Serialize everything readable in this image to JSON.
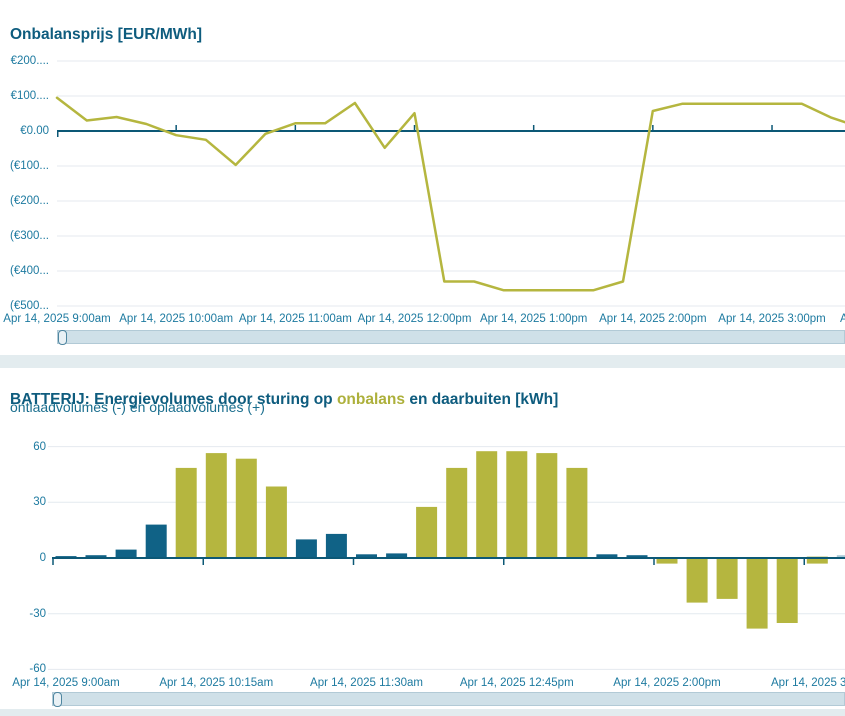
{
  "colors": {
    "title_teal": "#0e5c7e",
    "axis_text_teal": "#1d7aa0",
    "olive": "#b5b63f",
    "teal_bar": "#106286",
    "zero_axis": "#0c5876",
    "grid": "#e4eaef",
    "scroll_track": "#cfe0e8",
    "scroll_border": "#b2cad6",
    "scroll_thumb_border": "#4f86a0",
    "divider_band": "#e3ecef",
    "pale_olive": "#d9ddb2",
    "pale_teal": "#abcbd8"
  },
  "price_chart": {
    "title": "Onbalansprijs [EUR/MWh]"
  },
  "battery_chart": {
    "title_part1": "BATTERIJ: Energievolumes door sturing op ",
    "title_highlight": "onbalans",
    "title_part2": " en daarbuiten [kWh]",
    "subtitle": "ontlaadvolumes (-) en oplaadvolumes (+)"
  },
  "chart_data": [
    {
      "id": "onbalansprijs",
      "type": "line",
      "title": "Onbalansprijs [EUR/MWh]",
      "unit": "EUR/MWh",
      "line_color": "#b5b63f",
      "x_interval_minutes": 15,
      "x": [
        "9:00am",
        "9:15am",
        "9:30am",
        "9:45am",
        "10:00am",
        "10:15am",
        "10:30am",
        "10:45am",
        "11:00am",
        "11:15am",
        "11:30am",
        "11:45am",
        "12:00pm",
        "12:15pm",
        "12:30pm",
        "12:45pm",
        "1:00pm",
        "1:15pm",
        "1:30pm",
        "1:45pm",
        "2:00pm",
        "2:15pm",
        "2:30pm",
        "2:45pm",
        "3:00pm",
        "3:15pm",
        "3:30pm",
        "3:45pm"
      ],
      "values": [
        95,
        30,
        40,
        20,
        -12,
        -25,
        -97,
        -8,
        22,
        22,
        80,
        -48,
        51,
        -430,
        -430,
        -455,
        -455,
        -455,
        -455,
        -430,
        57,
        78,
        78,
        78,
        78,
        78,
        38,
        10
      ],
      "ylim": [
        -500,
        200
      ],
      "grid": true,
      "legend": "none",
      "y_ticks": [
        200,
        100,
        0,
        -100,
        -200,
        -300,
        -400,
        -500
      ],
      "y_tick_labels": [
        "€200....",
        "€100....",
        "€0.00",
        "(€100...",
        "(€200...",
        "(€300...",
        "(€400...",
        "(€500..."
      ],
      "x_tick_labels": [
        "Apr 14, 2025 9:00am",
        "Apr 14, 2025 10:00am",
        "Apr 14, 2025 11:00am",
        "Apr 14, 2025 12:00pm",
        "Apr 14, 2025 1:00pm",
        "Apr 14, 2025 2:00pm",
        "Apr 14, 2025 3:00pm",
        "A"
      ]
    },
    {
      "id": "batterij-energievolumes",
      "type": "bar",
      "title": "BATTERIJ: Energievolumes door sturing op onbalans en daarbuiten [kWh]",
      "subtitle": "ontlaadvolumes (-) en oplaadvolumes (+)",
      "unit": "kWh",
      "ylim": [
        -60,
        60
      ],
      "grid": true,
      "legend": "none",
      "y_ticks": [
        60,
        30,
        0,
        -30,
        -60
      ],
      "y_tick_labels": [
        "60",
        "30",
        "0",
        "-30",
        "-60"
      ],
      "x_tick_labels": [
        "Apr 14, 2025 9:00am",
        "Apr 14, 2025 10:15am",
        "Apr 14, 2025 11:30am",
        "Apr 14, 2025 12:45pm",
        "Apr 14, 2025 2:00pm",
        "Apr 14, 2025 3:1"
      ],
      "series_colors": {
        "onbalans": "#b5b63f",
        "daarbuiten": "#106286"
      },
      "categories": [
        "9:00am",
        "9:15am",
        "9:30am",
        "9:45am",
        "10:00am",
        "10:15am",
        "10:30am",
        "10:45am",
        "11:00am",
        "11:15am",
        "11:30am",
        "11:45am",
        "12:00pm",
        "12:15pm",
        "12:30pm",
        "12:45pm",
        "1:00pm",
        "1:15pm",
        "1:30pm",
        "1:45pm",
        "2:00pm",
        "2:15pm",
        "2:30pm",
        "2:45pm",
        "3:00pm",
        "3:15pm"
      ],
      "values": [
        1,
        1.5,
        4.5,
        18,
        48.5,
        56.5,
        53.5,
        38.5,
        10,
        13,
        2,
        2.5,
        27.5,
        48.5,
        57.5,
        57.5,
        56.5,
        48.5,
        2,
        1.5,
        -3,
        -24,
        -22,
        -38,
        -35,
        -3
      ],
      "bar_series": [
        "daarbuiten",
        "daarbuiten",
        "daarbuiten",
        "daarbuiten",
        "onbalans",
        "onbalans",
        "onbalans",
        "onbalans",
        "daarbuiten",
        "daarbuiten",
        "daarbuiten",
        "daarbuiten",
        "onbalans",
        "onbalans",
        "onbalans",
        "onbalans",
        "onbalans",
        "onbalans",
        "daarbuiten",
        "daarbuiten",
        "onbalans",
        "onbalans",
        "onbalans",
        "onbalans",
        "onbalans",
        "onbalans"
      ],
      "partial_edge_bars": [
        {
          "index": 25,
          "value": 1,
          "color": "#d9ddb2"
        },
        {
          "index": 26,
          "value": 1.5,
          "color": "#abcbd8"
        }
      ]
    }
  ]
}
